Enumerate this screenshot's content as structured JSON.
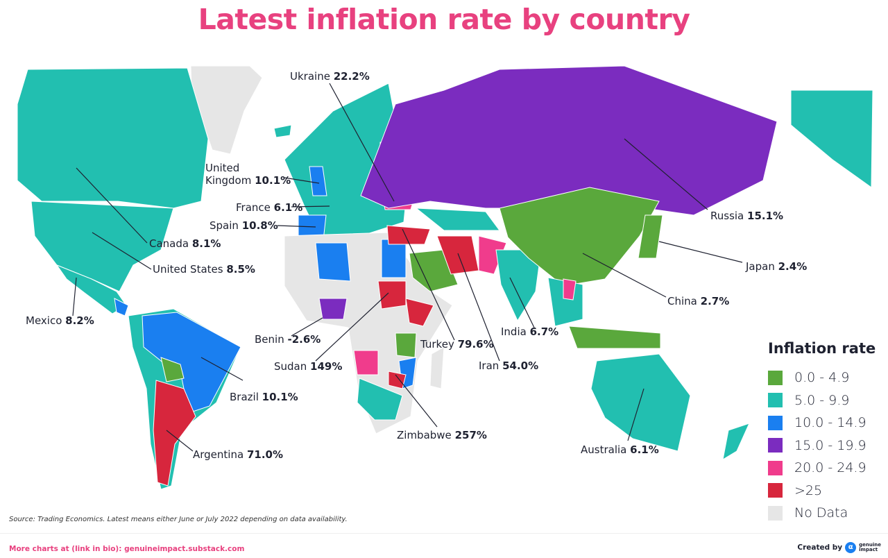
{
  "title": "Latest inflation rate by country",
  "legend": {
    "title": "Inflation rate",
    "items": [
      {
        "key": "g",
        "label": "0.0 - 4.9",
        "color": "#5aa83c"
      },
      {
        "key": "t",
        "label": "5.0 - 9.9",
        "color": "#22bfb0"
      },
      {
        "key": "b",
        "label": "10.0 - 14.9",
        "color": "#1a7ff0"
      },
      {
        "key": "p",
        "label": "15.0 - 19.9",
        "color": "#7b2cbf"
      },
      {
        "key": "k",
        "label": "20.0 - 24.9",
        "color": "#f03c8c"
      },
      {
        "key": "r",
        "label": ">25",
        "color": "#d7263d"
      },
      {
        "key": "n",
        "label": "No Data",
        "color": "#e6e6e6"
      }
    ]
  },
  "countries": [
    {
      "name": "Ukraine",
      "value": "22.2%"
    },
    {
      "name": "United Kingdom",
      "name_line1": "United",
      "name_line2": "Kingdom",
      "value": "10.1%"
    },
    {
      "name": "France",
      "value": "6.1%"
    },
    {
      "name": "Spain",
      "value": "10.8%"
    },
    {
      "name": "Canada",
      "value": "8.1%"
    },
    {
      "name": "United States",
      "value": "8.5%"
    },
    {
      "name": "Mexico",
      "value": "8.2%"
    },
    {
      "name": "Benin",
      "value": "-2.6%"
    },
    {
      "name": "Sudan",
      "value": "149%"
    },
    {
      "name": "Turkey",
      "value": "79.6%"
    },
    {
      "name": "Iran",
      "value": "54.0%"
    },
    {
      "name": "India",
      "value": "6.7%"
    },
    {
      "name": "Brazil",
      "value": "10.1%"
    },
    {
      "name": "Argentina",
      "value": "71.0%"
    },
    {
      "name": "Zimbabwe",
      "value": "257%"
    },
    {
      "name": "Australia",
      "value": "6.1%"
    },
    {
      "name": "China",
      "value": "2.7%"
    },
    {
      "name": "Japan",
      "value": "2.4%"
    },
    {
      "name": "Russia",
      "value": "15.1%"
    }
  ],
  "footer": {
    "source": "Source: Trading Economics. Latest means either June or July 2022 depending on data availability.",
    "more": "More charts at (link in bio): genuineimpact.substack.com",
    "created_by": "Created by",
    "brand_line1": "genuine",
    "brand_line2": "impact"
  }
}
